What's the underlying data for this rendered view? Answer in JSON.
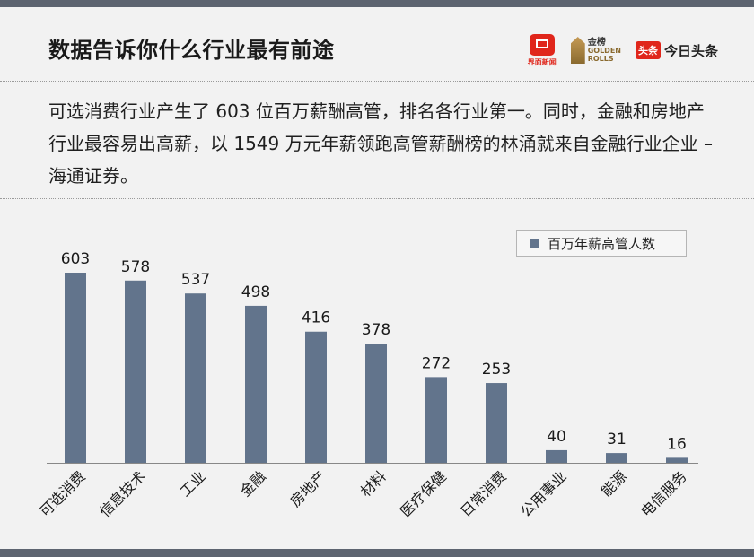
{
  "header": {
    "title": "数据告诉你什么行业最有前途",
    "logos": {
      "jiemian": "界面新闻",
      "golden_rolls_cn": "金榜",
      "golden_rolls_en1": "GOLDEN",
      "golden_rolls_en2": "ROLLS",
      "toutiao_badge": "头条",
      "toutiao_name": "今日头条"
    }
  },
  "description": "可选消费行业产生了 603 位百万薪酬高管，排名各行业第一。同时，金融和房地产行业最容易出高薪，以 1549 万元年薪领跑高管薪酬榜的林涌就来自金融行业企业 – 海通证券。",
  "colors": {
    "bar": "#62748c",
    "top_bar": "#5d6470",
    "background": "#f2f2f2"
  },
  "chart_data": {
    "type": "bar",
    "categories": [
      "可选消费",
      "信息技术",
      "工业",
      "金融",
      "房地产",
      "材料",
      "医疗保健",
      "日常消费",
      "公用事业",
      "能源",
      "电信服务"
    ],
    "series": [
      {
        "name": "百万年薪高管人数",
        "values": [
          603,
          578,
          537,
          498,
          416,
          378,
          272,
          253,
          40,
          31,
          16
        ]
      }
    ],
    "ylim": [
      0,
      640
    ],
    "grid": false,
    "legend": "top-right",
    "data_labels": true
  }
}
